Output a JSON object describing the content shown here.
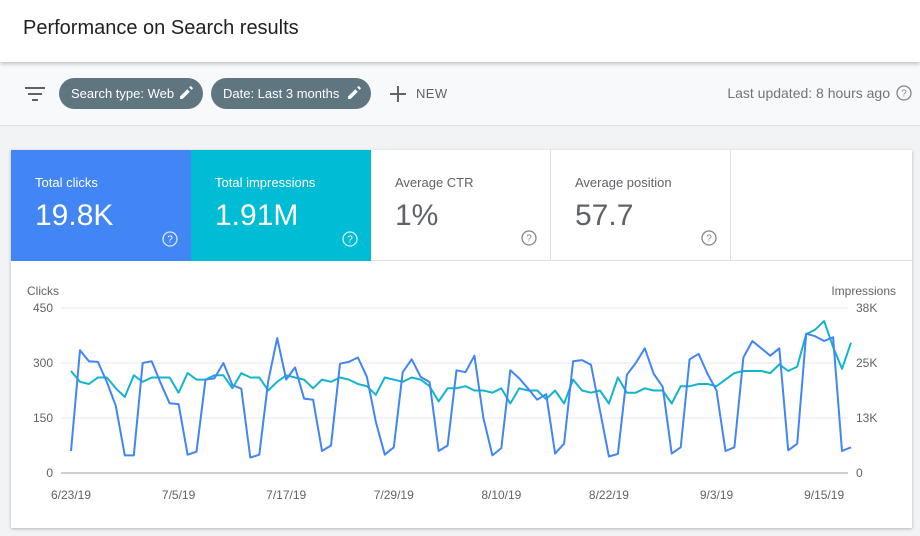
{
  "header": {
    "title": "Performance on Search results"
  },
  "filters": {
    "chip1": "Search type: Web",
    "chip2": "Date: Last 3 months",
    "new_label": "NEW",
    "last_updated": "Last updated: 8 hours ago"
  },
  "metrics": [
    {
      "label": "Total clicks",
      "value": "19.8K",
      "color": "#4285f4"
    },
    {
      "label": "Total impressions",
      "value": "1.91M",
      "color": "#00bcd4"
    },
    {
      "label": "Average CTR",
      "value": "1%"
    },
    {
      "label": "Average position",
      "value": "57.7"
    }
  ],
  "chart_data": {
    "type": "line",
    "left_axis_title": "Clicks",
    "right_axis_title": "Impressions",
    "left_ticks": [
      "450",
      "300",
      "150",
      "0"
    ],
    "right_ticks": [
      "38K",
      "25K",
      "13K",
      "0"
    ],
    "ylim_left": [
      0,
      450
    ],
    "ylim_right": [
      0,
      38000
    ],
    "x_tick_labels": [
      "6/23/19",
      "7/5/19",
      "7/17/19",
      "7/29/19",
      "8/10/19",
      "8/22/19",
      "9/3/19",
      "9/15/19"
    ],
    "series": [
      {
        "name": "Clicks",
        "color": "#4285f4",
        "axis": "left",
        "values": [
          60,
          335,
          305,
          303,
          248,
          183,
          48,
          48,
          300,
          305,
          245,
          190,
          188,
          50,
          58,
          255,
          258,
          300,
          240,
          230,
          42,
          50,
          250,
          368,
          255,
          288,
          203,
          200,
          60,
          75,
          298,
          303,
          315,
          262,
          140,
          50,
          70,
          275,
          310,
          262,
          248,
          60,
          75,
          280,
          275,
          320,
          150,
          48,
          68,
          280,
          258,
          230,
          200,
          215,
          53,
          80,
          305,
          308,
          295,
          170,
          45,
          52,
          268,
          300,
          340,
          270,
          235,
          53,
          70,
          310,
          325,
          270,
          225,
          60,
          70,
          315,
          360,
          340,
          320,
          340,
          62,
          80,
          380,
          373,
          360,
          370,
          60,
          70
        ]
      },
      {
        "name": "Impressions",
        "color": "#12b5cb",
        "axis": "right",
        "values": [
          23500,
          21000,
          20500,
          22000,
          22000,
          19500,
          17500,
          22500,
          21000,
          22000,
          22000,
          22000,
          18500,
          23000,
          21500,
          21500,
          22500,
          22500,
          19500,
          23000,
          22000,
          22000,
          19000,
          21000,
          22500,
          22000,
          21500,
          19500,
          21500,
          21000,
          22000,
          21500,
          20500,
          20000,
          18000,
          22000,
          21500,
          21000,
          22000,
          21500,
          20000,
          16500,
          19500,
          19500,
          20000,
          19000,
          19000,
          18500,
          19500,
          16000,
          19500,
          19000,
          19000,
          17000,
          19000,
          16000,
          21500,
          19000,
          18500,
          19000,
          16000,
          22000,
          18500,
          18500,
          19500,
          19000,
          19000,
          16000,
          20000,
          20000,
          20500,
          20500,
          20000,
          21500,
          23000,
          23500,
          23500,
          23500,
          23000,
          25000,
          23500,
          24500,
          32000,
          33000,
          35000,
          29000,
          24000,
          30000
        ]
      }
    ]
  }
}
